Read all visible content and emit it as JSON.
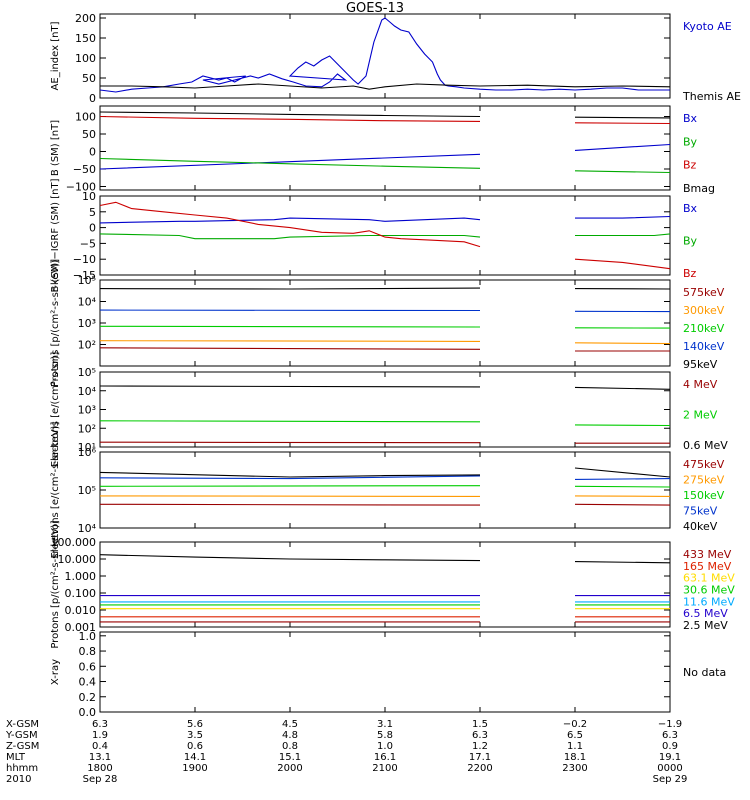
{
  "title": "GOES-13",
  "chart_data": [
    {
      "type": "line",
      "ylabel": "AE_index [nT]",
      "ylim": [
        0,
        210
      ],
      "yticks": [
        {
          "v": 0,
          "t": "0"
        },
        {
          "v": 50,
          "t": "50"
        },
        {
          "v": 100,
          "t": "100"
        },
        {
          "v": 150,
          "t": "150"
        },
        {
          "v": 200,
          "t": "200"
        }
      ],
      "series": [
        {
          "name": "Kyoto AE",
          "color": "#0000cc",
          "x": [
            1800,
            1810,
            1820,
            1830,
            1840,
            1850,
            1858,
            1865,
            1875,
            1880,
            1885,
            1892,
            1905,
            1915,
            1925,
            1935,
            1940,
            1947,
            1955,
            1962,
            1970,
            1980,
            1985,
            1990,
            1995,
            2000,
            2005,
            2010,
            2015,
            2020,
            2025,
            2030,
            2035,
            2040,
            2043,
            2048,
            2053,
            2058,
            2100,
            2103,
            2106,
            2110,
            2115,
            2120,
            2125,
            2130,
            2133,
            2135,
            2138,
            2140,
            2145,
            2150,
            2200,
            2210,
            2220,
            2230,
            2240,
            2250,
            2300,
            2310,
            2320,
            2330,
            2340,
            2350,
            2400
          ],
          "y": [
            20,
            15,
            22,
            25,
            28,
            35,
            40,
            55,
            45,
            50,
            40,
            55,
            45,
            35,
            45,
            55,
            50,
            60,
            48,
            40,
            30,
            28,
            40,
            60,
            45,
            55,
            75,
            90,
            80,
            95,
            105,
            85,
            65,
            45,
            35,
            55,
            140,
            195,
            200,
            190,
            180,
            170,
            165,
            135,
            110,
            90,
            60,
            45,
            32,
            30,
            28,
            25,
            22,
            20,
            20,
            22,
            20,
            22,
            20,
            22,
            25,
            25,
            20,
            20,
            20
          ]
        },
        {
          "name": "Themis AE",
          "color": "#000000",
          "x": [
            1800,
            1820,
            1840,
            1900,
            1920,
            1940,
            2000,
            2020,
            2040,
            2050,
            2100,
            2120,
            2140,
            2200,
            2230,
            2300,
            2330,
            2400
          ],
          "y": [
            30,
            30,
            28,
            25,
            30,
            35,
            30,
            25,
            30,
            22,
            28,
            35,
            32,
            30,
            32,
            28,
            30,
            28
          ]
        }
      ]
    },
    {
      "type": "line",
      "ylabel": "B (SM) [nT]",
      "ylim": [
        -110,
        130
      ],
      "yticks": [
        {
          "v": -100,
          "t": "−100"
        },
        {
          "v": -50,
          "t": "−50"
        },
        {
          "v": 0,
          "t": "0"
        },
        {
          "v": 50,
          "t": "50"
        },
        {
          "v": 100,
          "t": "100"
        }
      ],
      "series": [
        {
          "name": "Bx",
          "color": "#0000cc",
          "x": [
            1800,
            2200,
            null,
            2300,
            2400
          ],
          "y": [
            -50,
            -8,
            null,
            3,
            20
          ]
        },
        {
          "name": "By",
          "color": "#00aa00",
          "x": [
            1800,
            1900,
            2000,
            2100,
            2200,
            null,
            2300,
            2400
          ],
          "y": [
            -20,
            -28,
            -35,
            -42,
            -48,
            null,
            -55,
            -60
          ]
        },
        {
          "name": "Bz",
          "color": "#cc0000",
          "x": [
            1800,
            1900,
            2000,
            2100,
            2200,
            null,
            2300,
            2400
          ],
          "y": [
            100,
            95,
            92,
            88,
            86,
            null,
            82,
            80
          ]
        },
        {
          "name": "Bmag",
          "color": "#000000",
          "x": [
            1800,
            1900,
            2000,
            2100,
            2200,
            null,
            2300,
            2400
          ],
          "y": [
            113,
            110,
            106,
            103,
            100,
            null,
            98,
            96
          ]
        }
      ]
    },
    {
      "type": "line",
      "ylabel": "B (SM)−IGRF (SM) [nT]",
      "ylim": [
        -15,
        10
      ],
      "yticks": [
        {
          "v": -15,
          "t": "−15"
        },
        {
          "v": -10,
          "t": "−10"
        },
        {
          "v": -5,
          "t": "−5"
        },
        {
          "v": 0,
          "t": "0"
        },
        {
          "v": 5,
          "t": "5"
        },
        {
          "v": 10,
          "t": "10"
        }
      ],
      "series": [
        {
          "name": "Bx",
          "color": "#0000cc",
          "x": [
            1800,
            1850,
            1900,
            1950,
            2000,
            2050,
            2100,
            2150,
            2200,
            null,
            2300,
            2330,
            2400
          ],
          "y": [
            1.5,
            2,
            2,
            2.5,
            3,
            2.5,
            2,
            3,
            2.5,
            null,
            3,
            3,
            3.5
          ]
        },
        {
          "name": "By",
          "color": "#00aa00",
          "x": [
            1800,
            1850,
            1900,
            1950,
            2000,
            2050,
            2100,
            2150,
            2200,
            null,
            2300,
            2350,
            2400
          ],
          "y": [
            -2,
            -2.5,
            -3.5,
            -3.5,
            -3,
            -2.5,
            -2.5,
            -2.5,
            -3,
            null,
            -2.5,
            -2.5,
            -2
          ]
        },
        {
          "name": "Bz",
          "color": "#cc0000",
          "x": [
            1800,
            1810,
            1820,
            1840,
            1900,
            1920,
            1940,
            2000,
            2020,
            2040,
            2050,
            2100,
            2110,
            2130,
            2150,
            2200,
            null,
            2300,
            2330,
            2400
          ],
          "y": [
            7,
            8,
            6,
            5,
            4,
            3,
            1,
            0,
            -1.5,
            -1.8,
            -1,
            -3,
            -3.5,
            -4,
            -4.5,
            -6,
            null,
            -10,
            -11,
            -13
          ]
        }
      ]
    },
    {
      "type": "line",
      "ylabel": "Protons [p/(cm²-s-sr-keV)]",
      "yscale": "log",
      "ylim": [
        10,
        100000
      ],
      "yticks": [
        {
          "v": 100,
          "t": "10²"
        },
        {
          "v": 1000,
          "t": "10³"
        },
        {
          "v": 10000,
          "t": "10⁴"
        },
        {
          "v": 100000,
          "t": "10⁵"
        }
      ],
      "series": [
        {
          "name": "575keV",
          "color": "#990000",
          "x": [
            1800,
            2200,
            null,
            2300,
            2400
          ],
          "y": [
            70,
            60,
            null,
            50,
            50
          ]
        },
        {
          "name": "300keV",
          "color": "#ff9900",
          "x": [
            1800,
            2200,
            null,
            2300,
            2400
          ],
          "y": [
            150,
            140,
            null,
            120,
            110
          ]
        },
        {
          "name": "210keV",
          "color": "#00cc00",
          "x": [
            1800,
            2200,
            null,
            2300,
            2400
          ],
          "y": [
            700,
            650,
            null,
            600,
            580
          ]
        },
        {
          "name": "140keV",
          "color": "#0033cc",
          "x": [
            1800,
            2200,
            null,
            2300,
            2400
          ],
          "y": [
            4000,
            3800,
            null,
            3500,
            3400
          ]
        },
        {
          "name": "95keV",
          "color": "#000000",
          "x": [
            1800,
            2000,
            2200,
            null,
            2300,
            2400
          ],
          "y": [
            40000,
            38000,
            42000,
            null,
            40000,
            38000
          ]
        }
      ]
    },
    {
      "type": "line",
      "ylabel": "Electrons [e/(cm²-s-sr)]",
      "yscale": "log",
      "ylim": [
        10,
        100000
      ],
      "yticks": [
        {
          "v": 10,
          "t": "10¹"
        },
        {
          "v": 100,
          "t": "10²"
        },
        {
          "v": 1000,
          "t": "10³"
        },
        {
          "v": 10000,
          "t": "10⁴"
        },
        {
          "v": 100000,
          "t": "10⁵"
        }
      ],
      "series": [
        {
          "name": "4 MeV",
          "color": "#990000",
          "x": [
            1800,
            2200,
            null,
            2300,
            2400
          ],
          "y": [
            18,
            17,
            null,
            16,
            16
          ]
        },
        {
          "name": "2 MeV",
          "color": "#00cc00",
          "x": [
            1800,
            2200,
            null,
            2300,
            2400
          ],
          "y": [
            250,
            220,
            null,
            150,
            140
          ]
        },
        {
          "name": "0.6 MeV",
          "color": "#000000",
          "x": [
            1800,
            2200,
            null,
            2300,
            2400
          ],
          "y": [
            18000,
            16000,
            null,
            15000,
            12000
          ]
        }
      ]
    },
    {
      "type": "line",
      "ylabel": "Electrons [e/(cm²-s-sr-keV)]",
      "yscale": "log",
      "ylim": [
        10000,
        1000000
      ],
      "yticks": [
        {
          "v": 10000,
          "t": "10⁴"
        },
        {
          "v": 100000,
          "t": "10⁵"
        },
        {
          "v": 1000000,
          "t": "10⁶"
        }
      ],
      "series": [
        {
          "name": "475keV",
          "color": "#990000",
          "x": [
            1800,
            2200,
            null,
            2300,
            2400
          ],
          "y": [
            42000,
            40000,
            null,
            42000,
            40000
          ]
        },
        {
          "name": "275keV",
          "color": "#ff9900",
          "x": [
            1800,
            2200,
            null,
            2300,
            2400
          ],
          "y": [
            70000,
            68000,
            null,
            70000,
            68000
          ]
        },
        {
          "name": "150keV",
          "color": "#00cc00",
          "x": [
            1800,
            2200,
            null,
            2300,
            2400
          ],
          "y": [
            125000,
            130000,
            null,
            125000,
            120000
          ]
        },
        {
          "name": "75keV",
          "color": "#0033cc",
          "x": [
            1800,
            2000,
            2200,
            null,
            2300,
            2400
          ],
          "y": [
            210000,
            200000,
            235000,
            null,
            190000,
            200000
          ]
        },
        {
          "name": "40keV",
          "color": "#000000",
          "x": [
            1800,
            2000,
            2100,
            2200,
            null,
            2300,
            2400
          ],
          "y": [
            290000,
            220000,
            240000,
            250000,
            null,
            380000,
            220000
          ]
        }
      ]
    },
    {
      "type": "line",
      "ylabel": "Protons [p/(cm²-s-sr-keV)]",
      "yscale": "log",
      "ylim": [
        0.001,
        100
      ],
      "yticks": [
        {
          "v": 0.001,
          "t": "0.001"
        },
        {
          "v": 0.01,
          "t": "0.010"
        },
        {
          "v": 0.1,
          "t": "0.100"
        },
        {
          "v": 1,
          "t": "1.000"
        },
        {
          "v": 10,
          "t": "10.000"
        },
        {
          "v": 100,
          "t": "100.000"
        }
      ],
      "series": [
        {
          "name": "433 MeV",
          "color": "#990000",
          "x": [
            1800,
            2200,
            null,
            2300,
            2400
          ],
          "y": [
            0.002,
            0.002,
            null,
            0.002,
            0.002
          ]
        },
        {
          "name": "165 MeV",
          "color": "#dd2200",
          "x": [
            1800,
            2200,
            null,
            2300,
            2400
          ],
          "y": [
            0.004,
            0.004,
            null,
            0.004,
            0.004
          ]
        },
        {
          "name": "63.1 MeV",
          "color": "#ffdd00",
          "x": [
            1800,
            2200,
            null,
            2300,
            2400
          ],
          "y": [
            0.012,
            0.012,
            null,
            0.012,
            0.012
          ]
        },
        {
          "name": "30.6 MeV",
          "color": "#00cc00",
          "x": [
            1800,
            2200,
            null,
            2300,
            2400
          ],
          "y": [
            0.02,
            0.02,
            null,
            0.02,
            0.02
          ]
        },
        {
          "name": "11.6 MeV",
          "color": "#00aaff",
          "x": [
            1800,
            2200,
            null,
            2300,
            2400
          ],
          "y": [
            0.03,
            0.03,
            null,
            0.03,
            0.03
          ]
        },
        {
          "name": "6.5 MeV",
          "color": "#2200cc",
          "x": [
            1800,
            2200,
            null,
            2300,
            2400
          ],
          "y": [
            0.07,
            0.07,
            null,
            0.07,
            0.07
          ]
        },
        {
          "name": "2.5 MeV",
          "color": "#000000",
          "x": [
            1800,
            1900,
            2000,
            2100,
            2200,
            null,
            2300,
            2400
          ],
          "y": [
            18,
            13,
            10,
            9,
            8,
            null,
            7,
            6
          ]
        }
      ]
    },
    {
      "type": "line",
      "ylabel": "X-ray",
      "ylim": [
        0,
        1.05
      ],
      "yticks": [
        {
          "v": 0,
          "t": "0.0"
        },
        {
          "v": 0.2,
          "t": "0.2"
        },
        {
          "v": 0.4,
          "t": "0.4"
        },
        {
          "v": 0.6,
          "t": "0.6"
        },
        {
          "v": 0.8,
          "t": "0.8"
        },
        {
          "v": 1.0,
          "t": "1.0"
        }
      ],
      "series": [],
      "note": "No data"
    }
  ],
  "x_axis": {
    "xlim": [
      1800,
      2400
    ],
    "ticks": [
      1800,
      1900,
      2000,
      2100,
      2200,
      2300,
      2400
    ],
    "row_labels": [
      "X-GSM",
      "Y-GSM",
      "Z-GSM",
      "MLT",
      "hhmm",
      "2010"
    ],
    "rows": [
      [
        "6.3",
        "5.6",
        "4.5",
        "3.1",
        "1.5",
        "−0.2",
        "−1.9"
      ],
      [
        "1.9",
        "3.5",
        "4.8",
        "5.8",
        "6.3",
        "6.5",
        "6.3"
      ],
      [
        "0.4",
        "0.6",
        "0.8",
        "1.0",
        "1.2",
        "1.1",
        "0.9"
      ],
      [
        "13.1",
        "14.1",
        "15.1",
        "16.1",
        "17.1",
        "18.1",
        "19.1"
      ],
      [
        "1800",
        "1900",
        "2000",
        "2100",
        "2200",
        "2300",
        "0000"
      ],
      [
        "Sep 28",
        "",
        "",
        "",
        "",
        "",
        "Sep 29"
      ]
    ]
  }
}
